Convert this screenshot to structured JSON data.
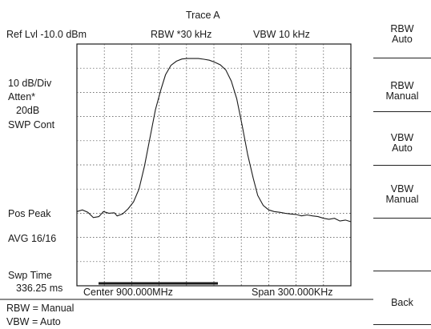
{
  "header": {
    "trace_title": "Trace A",
    "ref_level": "Ref Lvl -10.0 dBm",
    "rbw": "RBW  *30 kHz",
    "vbw": "VBW  10 kHz"
  },
  "left_panel": {
    "scale": "10 dB/Div",
    "atten_label": "Atten*",
    "atten_value": "20dB",
    "sweep_mode": "SWP Cont",
    "detector": "Pos Peak",
    "average": "AVG 16/16",
    "sweep_time_label": "Swp Time",
    "sweep_time_value": "336.25 ms"
  },
  "footer": {
    "center": "Center  900.000MHz",
    "span": "Span  300.000KHz",
    "status_rbw": "RBW = Manual",
    "status_vbw": "VBW = Auto"
  },
  "softkeys": [
    {
      "line1": "RBW",
      "line2": "Auto"
    },
    {
      "line1": "RBW",
      "line2": "Manual"
    },
    {
      "line1": "VBW",
      "line2": "Auto"
    },
    {
      "line1": "VBW",
      "line2": "Manual"
    },
    {
      "line1": "",
      "line2": ""
    },
    {
      "line1": "Back",
      "line2": ""
    }
  ],
  "chart_data": {
    "type": "line",
    "x_unit": "MHz",
    "xlim": [
      899.85,
      900.15
    ],
    "ylim": [
      -110,
      -10
    ],
    "y_unit": "dBm",
    "grid": true,
    "grid_divisions": [
      10,
      10
    ],
    "series": [
      {
        "x": [
          899.85,
          899.856,
          899.862,
          899.868,
          899.874,
          899.879,
          899.885,
          899.891,
          899.894,
          899.9,
          899.906,
          899.912,
          899.918,
          899.924,
          899.93,
          899.936,
          899.942,
          899.947,
          899.953,
          899.959,
          899.965,
          899.971,
          899.977,
          899.983,
          899.989,
          899.995,
          900.001,
          900.007,
          900.013,
          900.019,
          900.025,
          900.031,
          900.037,
          900.043,
          900.048,
          900.054,
          900.06,
          900.066,
          900.072,
          900.078,
          900.084,
          900.09,
          900.096,
          900.102,
          900.108,
          900.114,
          900.12,
          900.126,
          900.132,
          900.138,
          900.144,
          900.15
        ],
        "y": [
          -79.3,
          -78.6,
          -79.6,
          -81.8,
          -81.4,
          -79.3,
          -80.0,
          -79.8,
          -81.1,
          -80.3,
          -78.2,
          -75.3,
          -70.0,
          -60.4,
          -48.8,
          -37.2,
          -28.8,
          -22.7,
          -18.8,
          -17.1,
          -16.2,
          -16.0,
          -16.0,
          -16.0,
          -16.3,
          -16.7,
          -17.5,
          -18.6,
          -20.7,
          -25.3,
          -32.6,
          -43.7,
          -55.8,
          -65.4,
          -72.6,
          -76.8,
          -78.6,
          -79.3,
          -79.6,
          -80.0,
          -80.3,
          -80.5,
          -81.1,
          -80.7,
          -81.1,
          -81.4,
          -82.1,
          -82.5,
          -82.1,
          -83.2,
          -82.8,
          -83.5
        ]
      }
    ]
  }
}
